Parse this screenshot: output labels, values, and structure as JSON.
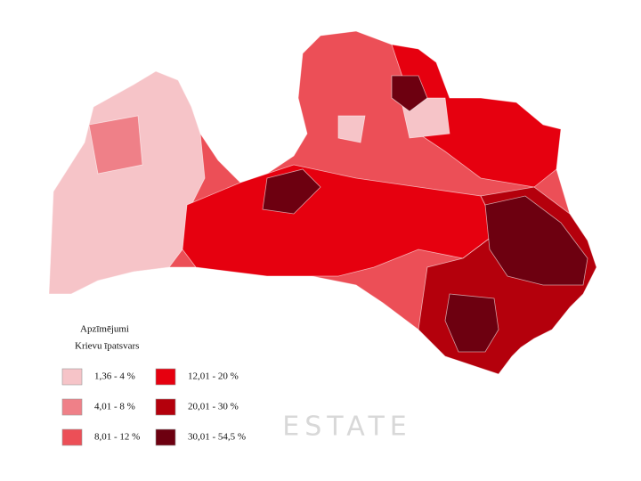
{
  "legend": {
    "title": "Apzīmējumi",
    "subtitle": "Krievu īpatsvars",
    "classes": [
      {
        "label": "1,36 - 4 %",
        "color": "#f6c4c8"
      },
      {
        "label": "4,01 - 8 %",
        "color": "#ef8088"
      },
      {
        "label": "8,01 - 12 %",
        "color": "#ec4f57"
      },
      {
        "label": "12,01 - 20 %",
        "color": "#e6000f"
      },
      {
        "label": "20,01 - 30 %",
        "color": "#b4000c"
      },
      {
        "label": "30,01 - 54,5 %",
        "color": "#6d0010"
      }
    ]
  },
  "watermark": "ESTATE"
}
